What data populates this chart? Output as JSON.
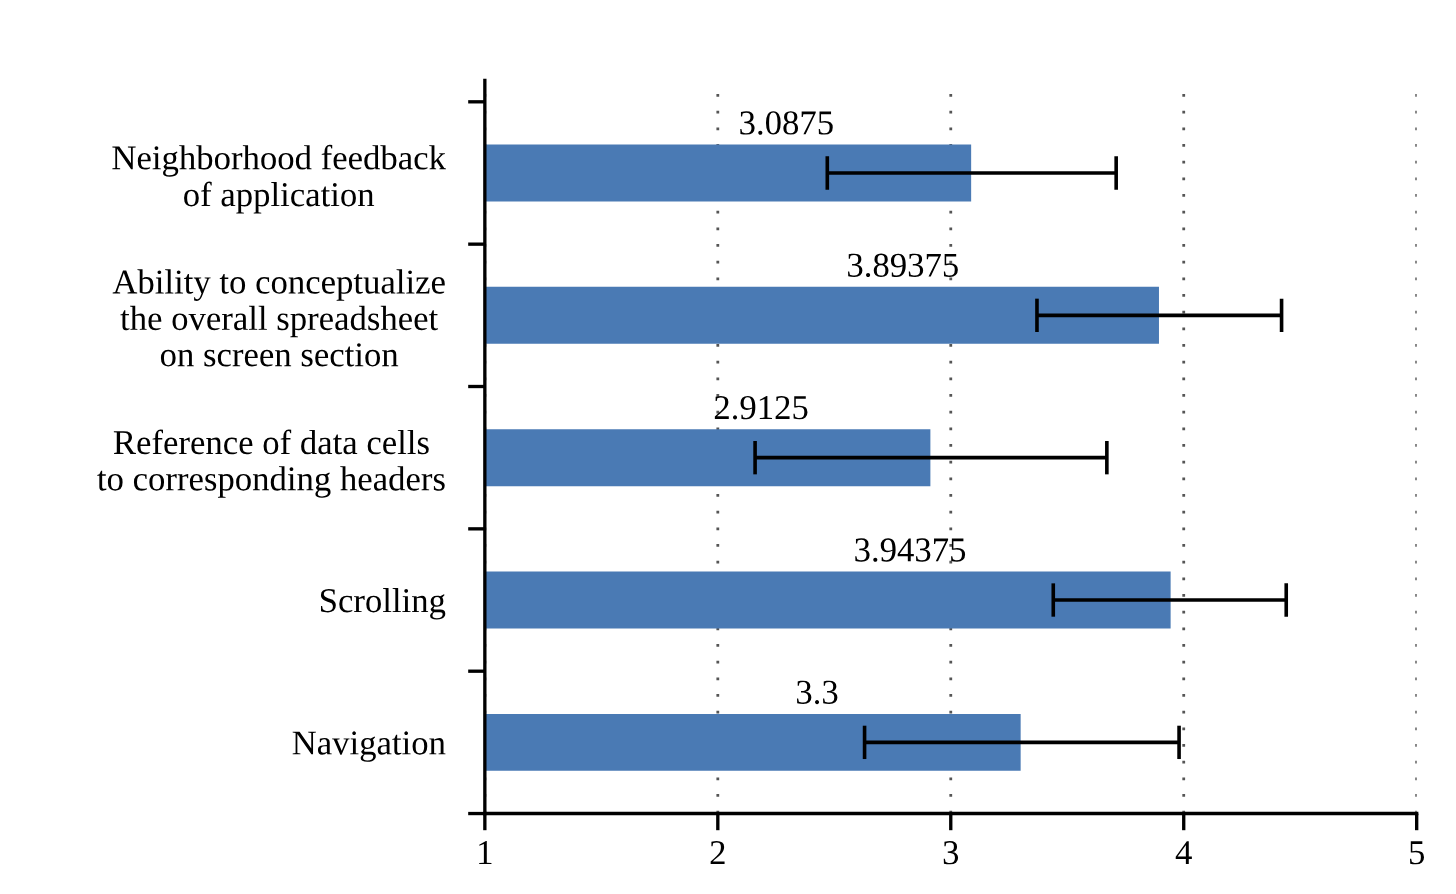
{
  "chart_data": {
    "type": "bar",
    "orientation": "horizontal",
    "categories": [
      "Neighborhood feedback\nof application",
      "Ability to conceptualize\nthe overall spreadsheet\non screen section",
      "Reference of data cells\nto corresponding headers",
      "Scrolling",
      "Navigation"
    ],
    "values": [
      3.0875,
      3.89375,
      2.9125,
      3.94375,
      3.3
    ],
    "errors": [
      [
        2.47,
        3.71
      ],
      [
        3.37,
        4.42
      ],
      [
        2.16,
        3.67
      ],
      [
        3.44,
        4.44
      ],
      [
        2.63,
        3.98
      ]
    ],
    "color": "#4a7ab4",
    "data_labels": true,
    "xlim": [
      1,
      5
    ],
    "xticks": [
      1,
      2,
      3,
      4,
      5
    ],
    "grid": "x"
  }
}
